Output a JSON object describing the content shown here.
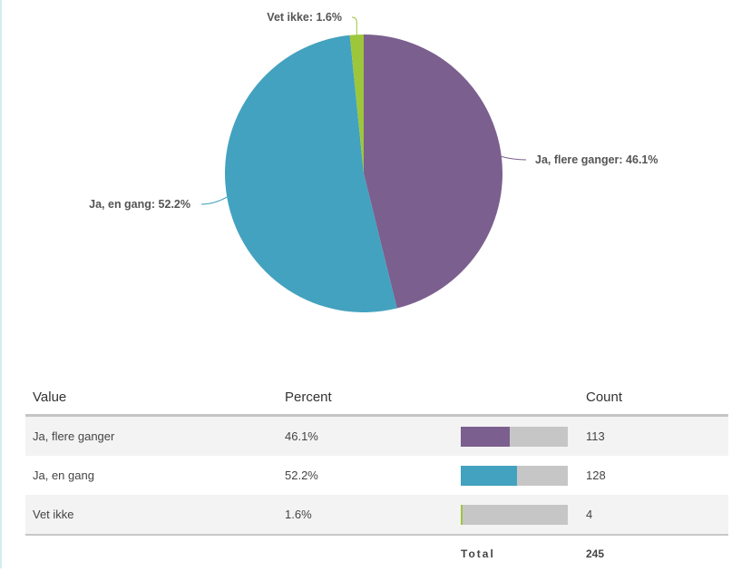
{
  "chart_data": {
    "type": "pie",
    "slices": [
      {
        "label": "Ja, flere ganger",
        "percent": 46.1,
        "count": 113,
        "color": "#7b5f8e",
        "data_label": "Ja, flere ganger: 46.1%"
      },
      {
        "label": "Ja, en gang",
        "percent": 52.2,
        "count": 128,
        "color": "#43a2bf",
        "data_label": "Ja, en gang: 52.2%"
      },
      {
        "label": "Vet ikke",
        "percent": 1.6,
        "count": 4,
        "color": "#9dc63b",
        "data_label": "Vet ikke: 1.6%"
      }
    ]
  },
  "table": {
    "headers": {
      "value": "Value",
      "percent": "Percent",
      "count": "Count"
    },
    "rows": [
      {
        "value": "Ja, flere ganger",
        "percent": "46.1%",
        "count": "113"
      },
      {
        "value": "Ja, en gang",
        "percent": "52.2%",
        "count": "128"
      },
      {
        "value": "Vet ikke",
        "percent": "1.6%",
        "count": "4"
      }
    ],
    "total_label": "Total",
    "total_value": "245"
  }
}
